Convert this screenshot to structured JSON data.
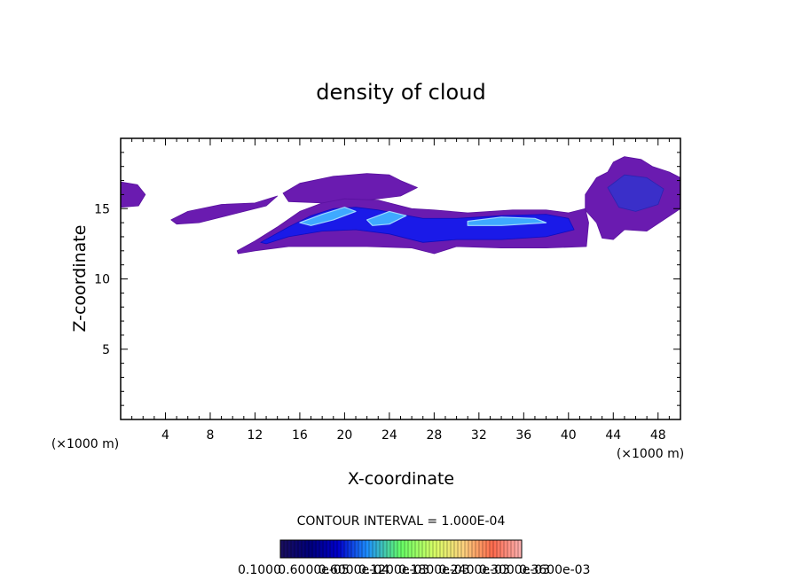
{
  "chart_data": {
    "type": "heatmap",
    "title": "density of cloud",
    "xlabel": "X-coordinate",
    "ylabel": "Z-coordinate",
    "x_unit": "(×1000 m)",
    "xlim": [
      0,
      50
    ],
    "ylim": [
      0,
      20
    ],
    "x_ticks": [
      4,
      8,
      12,
      16,
      20,
      24,
      28,
      32,
      36,
      40,
      44,
      48
    ],
    "y_ticks": [
      5,
      10,
      15
    ],
    "contour_interval_label": "CONTOUR INTERVAL = 1.000E-04",
    "colorbar_labels": [
      "0.1000",
      "0.6000e-05",
      "0.6000e-04",
      "0.1200e-03",
      "0.1800e-03",
      "0.2400e-03",
      "0.3000e-03",
      "0.3600e-03"
    ],
    "colorbar_colors": [
      "#1a0f5c",
      "#00007a",
      "#0000cc",
      "#1e90ff",
      "#66ff66",
      "#d9ff66",
      "#ffd27f",
      "#ff6a4d",
      "#ff3030",
      "#ffb3b3"
    ],
    "regions": [
      {
        "name": "left-edge-patch",
        "level": "low",
        "points": [
          [
            0,
            16.9
          ],
          [
            1.5,
            16.7
          ],
          [
            2.2,
            16.0
          ],
          [
            1.6,
            15.2
          ],
          [
            0,
            15.1
          ]
        ]
      },
      {
        "name": "upper-left-streak",
        "level": "low",
        "points": [
          [
            4.5,
            14.2
          ],
          [
            6,
            14.8
          ],
          [
            9,
            15.3
          ],
          [
            12,
            15.4
          ],
          [
            14,
            15.9
          ],
          [
            13,
            15.2
          ],
          [
            10,
            14.6
          ],
          [
            7,
            14.0
          ],
          [
            5,
            13.9
          ]
        ]
      },
      {
        "name": "upper-cap",
        "level": "low",
        "points": [
          [
            14.5,
            16.1
          ],
          [
            16,
            16.8
          ],
          [
            19,
            17.3
          ],
          [
            22,
            17.5
          ],
          [
            24,
            17.4
          ],
          [
            25,
            17.0
          ],
          [
            26.5,
            16.5
          ],
          [
            25,
            15.9
          ],
          [
            22,
            15.6
          ],
          [
            18,
            15.4
          ],
          [
            15,
            15.5
          ]
        ]
      },
      {
        "name": "main-band",
        "level": "low",
        "points": [
          [
            10.4,
            12.0
          ],
          [
            12,
            12.7
          ],
          [
            14,
            13.7
          ],
          [
            16,
            14.8
          ],
          [
            18,
            15.4
          ],
          [
            20,
            15.7
          ],
          [
            23,
            15.6
          ],
          [
            26,
            15.0
          ],
          [
            28,
            14.9
          ],
          [
            31,
            14.7
          ],
          [
            35,
            14.9
          ],
          [
            38,
            14.9
          ],
          [
            40,
            14.7
          ],
          [
            41.5,
            15.0
          ],
          [
            41.8,
            14.0
          ],
          [
            41.6,
            12.3
          ],
          [
            38,
            12.2
          ],
          [
            34,
            12.2
          ],
          [
            30,
            12.3
          ],
          [
            28,
            11.8
          ],
          [
            26,
            12.2
          ],
          [
            22,
            12.3
          ],
          [
            18,
            12.3
          ],
          [
            15,
            12.3
          ],
          [
            12,
            12.0
          ],
          [
            10.5,
            11.8
          ]
        ]
      },
      {
        "name": "main-core",
        "level": "high",
        "points": [
          [
            12.5,
            12.6
          ],
          [
            15,
            13.7
          ],
          [
            17,
            14.5
          ],
          [
            19,
            15.0
          ],
          [
            21,
            15.1
          ],
          [
            23,
            14.9
          ],
          [
            25,
            14.6
          ],
          [
            27,
            14.3
          ],
          [
            30,
            14.3
          ],
          [
            34,
            14.5
          ],
          [
            38,
            14.6
          ],
          [
            40,
            14.3
          ],
          [
            40.5,
            13.5
          ],
          [
            38,
            13.0
          ],
          [
            34,
            12.8
          ],
          [
            30,
            12.8
          ],
          [
            27,
            12.6
          ],
          [
            24,
            13.2
          ],
          [
            21,
            13.5
          ],
          [
            18,
            13.4
          ],
          [
            15,
            13.0
          ],
          [
            13,
            12.5
          ]
        ]
      },
      {
        "name": "core-streak-1",
        "level": "peak",
        "points": [
          [
            16,
            14.0
          ],
          [
            18,
            14.6
          ],
          [
            20,
            15.1
          ],
          [
            21,
            14.8
          ],
          [
            19,
            14.2
          ],
          [
            17,
            13.8
          ]
        ]
      },
      {
        "name": "core-streak-2",
        "level": "peak",
        "points": [
          [
            22,
            14.2
          ],
          [
            24,
            14.8
          ],
          [
            25.5,
            14.5
          ],
          [
            24,
            13.9
          ],
          [
            22.5,
            13.8
          ]
        ]
      },
      {
        "name": "core-streak-3",
        "level": "peak",
        "points": [
          [
            31,
            14.1
          ],
          [
            34,
            14.4
          ],
          [
            37,
            14.3
          ],
          [
            38,
            14.0
          ],
          [
            34,
            13.8
          ],
          [
            31,
            13.8
          ]
        ]
      },
      {
        "name": "right-edge-patch",
        "level": "low",
        "points": [
          [
            41.5,
            16.0
          ],
          [
            42.5,
            17.2
          ],
          [
            43.5,
            17.6
          ],
          [
            44,
            18.3
          ],
          [
            45,
            18.7
          ],
          [
            46.5,
            18.5
          ],
          [
            47.5,
            18.0
          ],
          [
            49,
            17.6
          ],
          [
            50,
            17.2
          ],
          [
            50,
            15.0
          ],
          [
            48.5,
            14.2
          ],
          [
            47,
            13.4
          ],
          [
            45,
            13.5
          ],
          [
            44,
            12.8
          ],
          [
            43,
            12.9
          ],
          [
            42.5,
            14.0
          ],
          [
            41.5,
            14.9
          ]
        ]
      },
      {
        "name": "right-edge-core",
        "level": "mid",
        "points": [
          [
            43.5,
            16.5
          ],
          [
            45,
            17.4
          ],
          [
            47,
            17.2
          ],
          [
            48.5,
            16.4
          ],
          [
            48,
            15.3
          ],
          [
            46,
            14.8
          ],
          [
            44.5,
            15.1
          ]
        ]
      }
    ]
  }
}
